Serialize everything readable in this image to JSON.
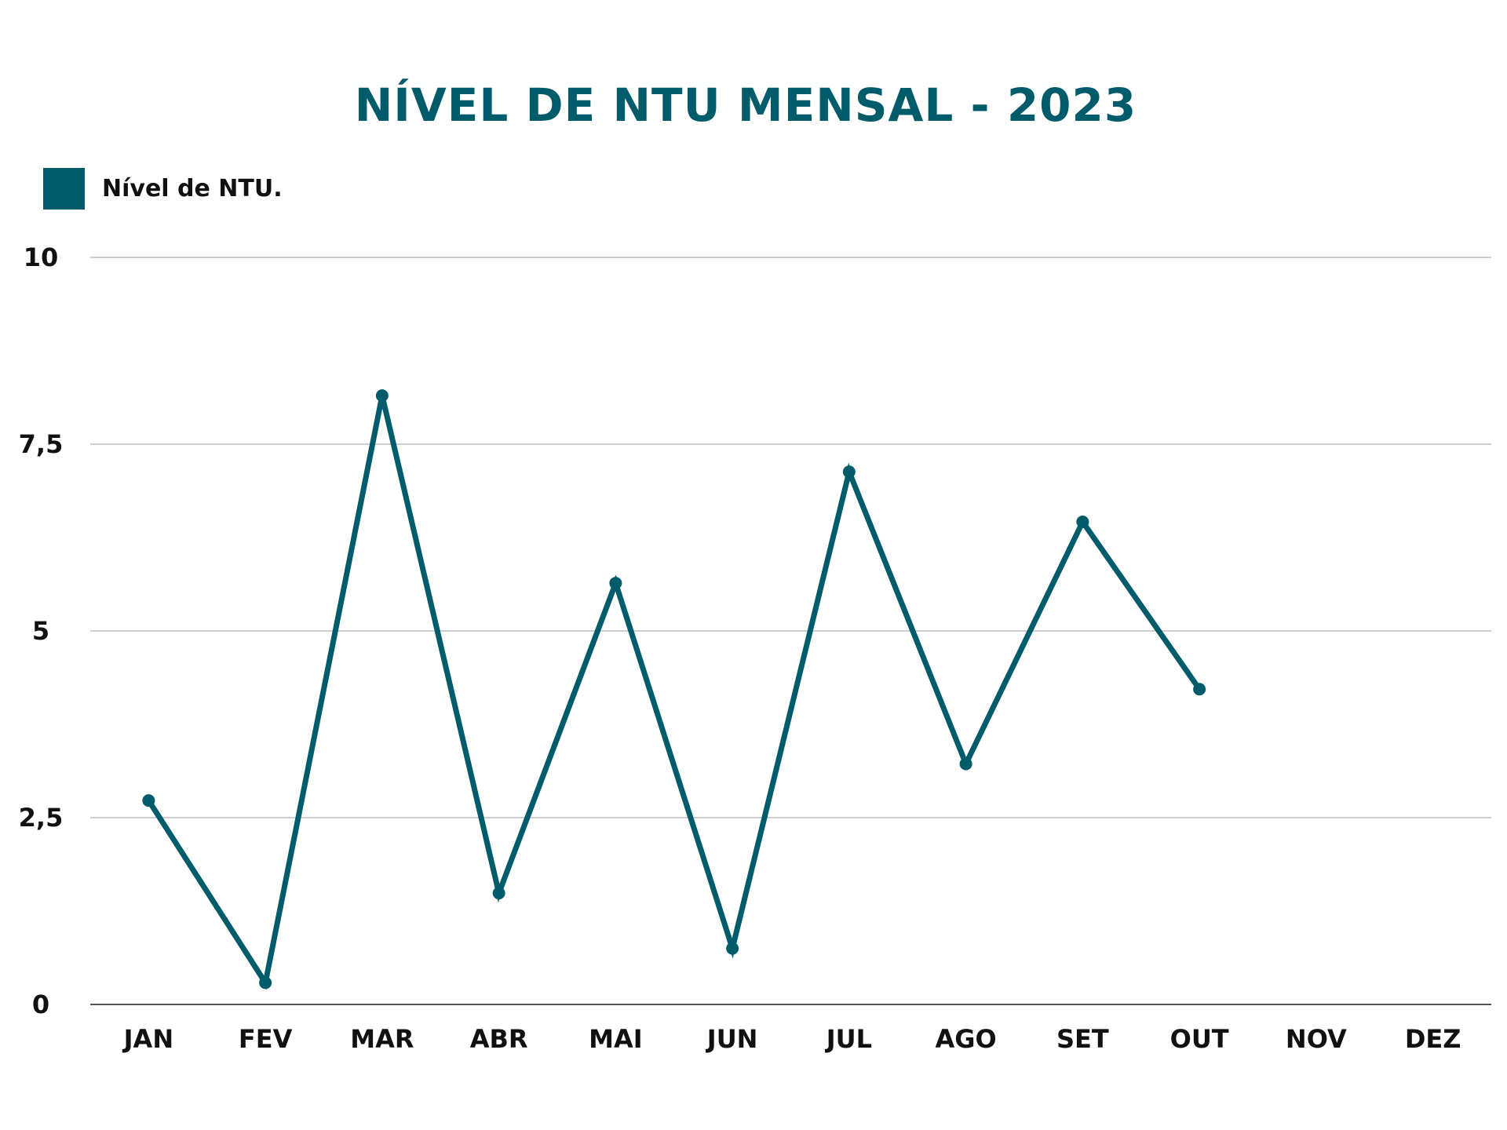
{
  "colors": {
    "series": "#005b6a",
    "title": "#005b6a",
    "grid": "#bdbdbd",
    "axis": "#555555",
    "text": "#111111"
  },
  "chart_data": {
    "type": "line",
    "title": "NÍVEL DE NTU MENSAL - 2023",
    "xlabel": "",
    "ylabel": "",
    "ylim": [
      0,
      10
    ],
    "yticks": [
      0,
      2.5,
      5,
      7.5,
      10
    ],
    "ytick_labels": [
      "0",
      "2,5",
      "5",
      "7,5",
      "10"
    ],
    "grid": true,
    "legend_position": "top-left",
    "categories": [
      "JAN",
      "FEV",
      "MAR",
      "ABR",
      "MAI",
      "JUN",
      "JUL",
      "AGO",
      "SET",
      "OUT",
      "NOV",
      "DEZ"
    ],
    "series": [
      {
        "name": "Nível de NTU.",
        "values": [
          2.73,
          0.29,
          8.15,
          1.49,
          5.64,
          0.75,
          7.13,
          3.22,
          6.46,
          4.22,
          null,
          null
        ]
      }
    ]
  }
}
